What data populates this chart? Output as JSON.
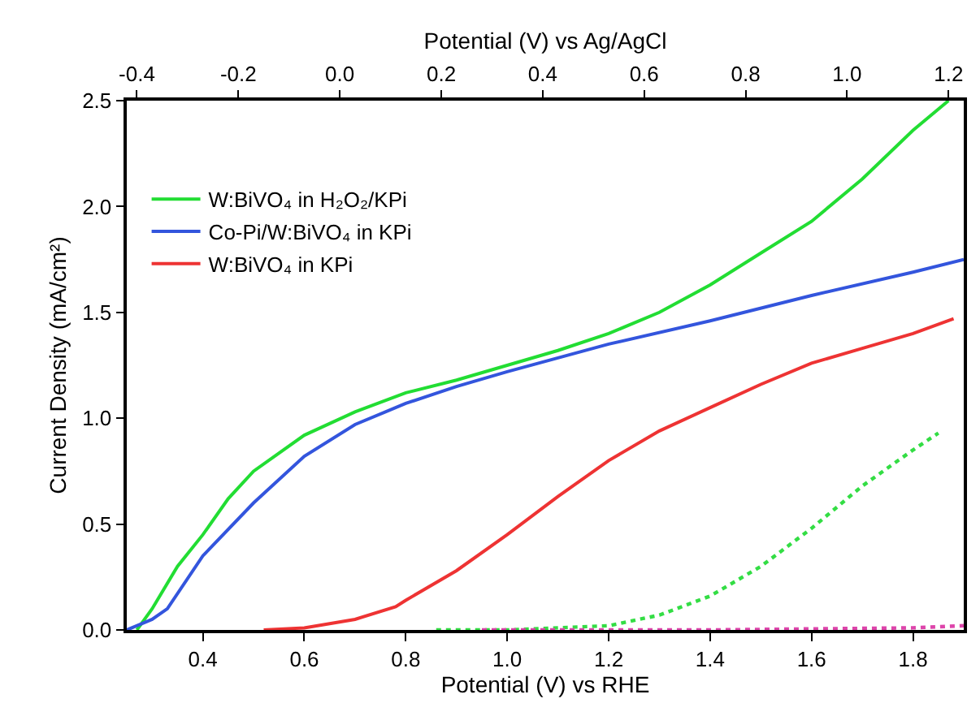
{
  "chart_data": {
    "type": "line",
    "xlabel": "Potential (V) vs RHE",
    "ylabel": "Current Density (mA/cm²)",
    "x2label": "Potential (V) vs Ag/AgCl",
    "xlim": [
      0.25,
      1.9
    ],
    "xticks": [
      0.4,
      0.6,
      0.8,
      {
        "value": 1,
        "label": "1.0"
      },
      1.2,
      1.4,
      1.6,
      1.8
    ],
    "x2lim": [
      -0.42,
      1.23
    ],
    "x2ticks": [
      -0.4,
      -0.2,
      {
        "value": 0,
        "label": "0.0"
      },
      0.2,
      0.4,
      0.6,
      0.8,
      {
        "value": 1,
        "label": "1.0"
      },
      1.2
    ],
    "ylim": [
      0,
      2.5
    ],
    "yticks": [
      {
        "value": 0,
        "label": "0.0"
      },
      0.5,
      {
        "value": 1,
        "label": "1.0"
      },
      1.5,
      {
        "value": 2,
        "label": "2.0"
      },
      2.5
    ],
    "legend": "top left",
    "marker": "none",
    "series": [
      {
        "name": "W:BiVO₄ in H₂O₂/KPi",
        "color": "#22dd33",
        "line_style": "solid",
        "x": [
          0.27,
          0.3,
          0.35,
          0.4,
          0.45,
          0.5,
          0.6,
          0.7,
          0.8,
          0.9,
          1.0,
          1.1,
          1.2,
          1.3,
          1.4,
          1.5,
          1.6,
          1.7,
          1.8,
          1.87
        ],
        "values": [
          0,
          0.1,
          0.3,
          0.45,
          0.62,
          0.75,
          0.92,
          1.03,
          1.12,
          1.18,
          1.25,
          1.32,
          1.4,
          1.5,
          1.63,
          1.78,
          1.93,
          2.13,
          2.36,
          2.5
        ]
      },
      {
        "name": "Co-Pi/W:BiVO₄ in KPi",
        "color": "#3355dd",
        "line_style": "solid",
        "x": [
          0.25,
          0.3,
          0.33,
          0.4,
          0.5,
          0.6,
          0.7,
          0.8,
          0.9,
          1.0,
          1.2,
          1.4,
          1.6,
          1.8,
          1.9
        ],
        "values": [
          0,
          0.05,
          0.1,
          0.35,
          0.6,
          0.82,
          0.97,
          1.07,
          1.15,
          1.22,
          1.35,
          1.46,
          1.58,
          1.69,
          1.75
        ]
      },
      {
        "name": "W:BiVO₄ in KPi",
        "color": "#ee3333",
        "line_style": "solid",
        "x": [
          0.52,
          0.6,
          0.7,
          0.78,
          0.8,
          0.9,
          1.0,
          1.1,
          1.2,
          1.3,
          1.4,
          1.5,
          1.6,
          1.7,
          1.8,
          1.88
        ],
        "values": [
          0,
          0.01,
          0.05,
          0.11,
          0.14,
          0.28,
          0.45,
          0.63,
          0.8,
          0.94,
          1.05,
          1.16,
          1.26,
          1.33,
          1.4,
          1.47
        ]
      },
      {
        "color": "#33dd44",
        "line_style": "dotted",
        "x": [
          0.86,
          1.0,
          1.2,
          1.3,
          1.4,
          1.5,
          1.6,
          1.7,
          1.8,
          1.85
        ],
        "values": [
          0,
          0,
          0.02,
          0.07,
          0.16,
          0.3,
          0.48,
          0.68,
          0.85,
          0.93
        ]
      },
      {
        "color": "#dd44aa",
        "line_style": "dotted",
        "x": [
          0.95,
          1.4,
          1.8,
          1.9
        ],
        "values": [
          0,
          0,
          0.01,
          0.02
        ]
      }
    ]
  }
}
